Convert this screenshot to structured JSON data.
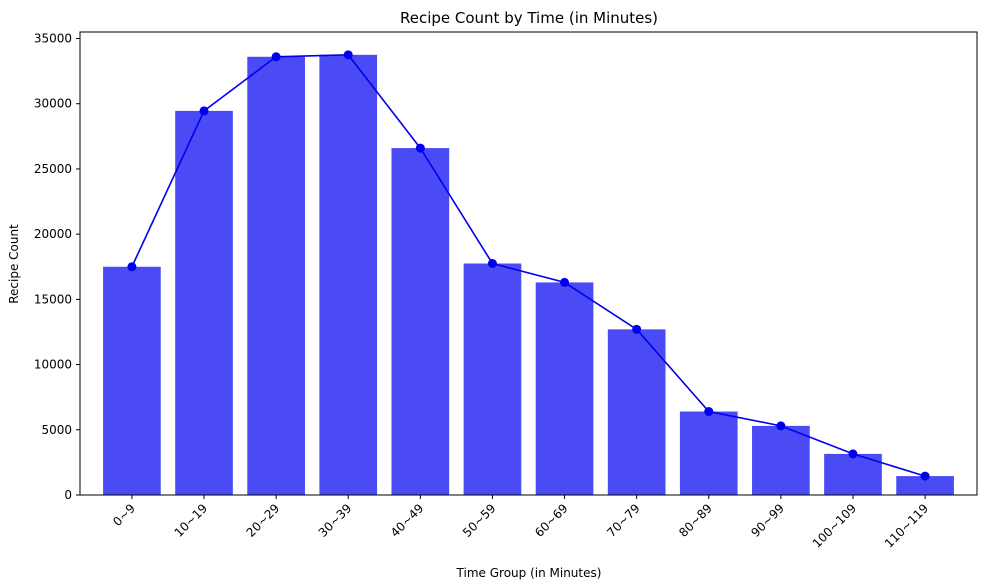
{
  "chart_data": {
    "type": "bar",
    "title": "Recipe Count by Time (in Minutes)",
    "xlabel": "Time Group (in Minutes)",
    "ylabel": "Recipe Count",
    "categories": [
      "0~9",
      "10~19",
      "20~29",
      "30~39",
      "40~49",
      "50~59",
      "60~69",
      "70~79",
      "80~89",
      "90~99",
      "100~109",
      "110~119"
    ],
    "values": [
      17500,
      29450,
      33600,
      33750,
      26600,
      17750,
      16300,
      12700,
      6400,
      5300,
      3150,
      1450
    ],
    "overlay_line": {
      "type": "line",
      "marker": "circle",
      "values": [
        17500,
        29450,
        33600,
        33750,
        26600,
        17750,
        16300,
        12700,
        6400,
        5300,
        3150,
        1450
      ]
    },
    "ylim": [
      0,
      35500
    ],
    "yticks": [
      0,
      5000,
      10000,
      15000,
      20000,
      25000,
      30000,
      35000
    ],
    "grid": false,
    "bar_color": "#4b4bf5",
    "line_color": "#0000ee"
  }
}
